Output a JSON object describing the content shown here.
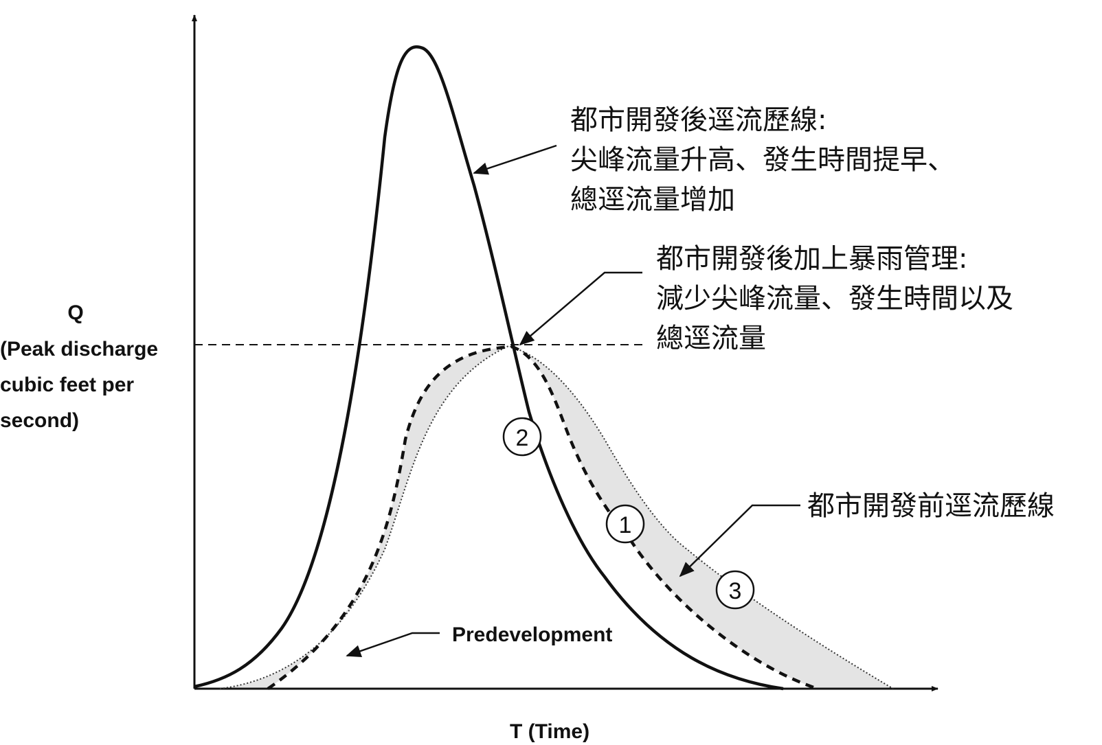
{
  "y_axis": {
    "symbol": "Q",
    "description_lines": [
      "(Peak discharge",
      "cubic feet per",
      "second)"
    ]
  },
  "x_axis": {
    "label": "T  (Time)"
  },
  "annotations": {
    "post_development": [
      "都市開發後逕流歷線:",
      "尖峰流量升高、發生時間提早、",
      "總逕流量增加"
    ],
    "stormwater_management": [
      "都市開發後加上暴雨管理:",
      "減少尖峰流量、發生時間以及",
      "總逕流量"
    ],
    "pre_development_zh": "都市開發前逕流歷線",
    "pre_development_en": "Predevelopment"
  },
  "curve_markers": [
    "1",
    "2",
    "3"
  ],
  "colors": {
    "line": "#111111",
    "band_fill": "#e4e4e4"
  }
}
